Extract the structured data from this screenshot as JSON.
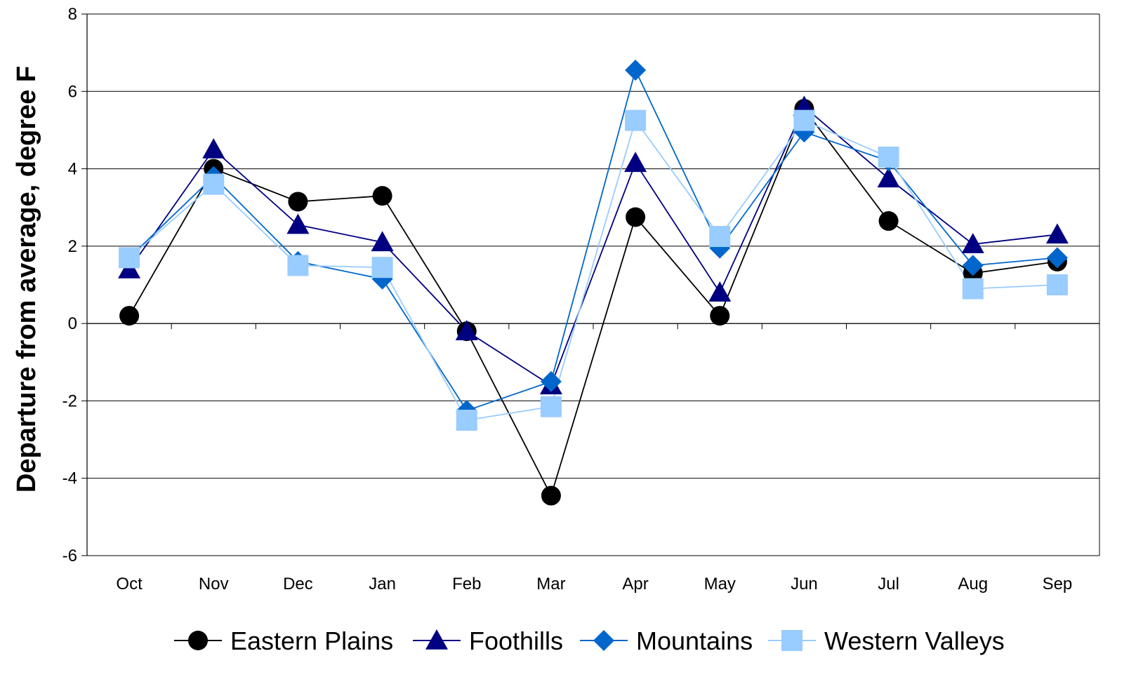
{
  "chart_data": {
    "type": "line",
    "title": "",
    "xlabel": "",
    "ylabel": "Departure from average, degree F",
    "ylim": [
      -6,
      8
    ],
    "yticks": [
      -6,
      -4,
      -2,
      0,
      2,
      4,
      6,
      8
    ],
    "grid": true,
    "legend_position": "bottom",
    "categories": [
      "Oct",
      "Nov",
      "Dec",
      "Jan",
      "Feb",
      "Mar",
      "Apr",
      "May",
      "Jun",
      "Jul",
      "Aug",
      "Sep"
    ],
    "series": [
      {
        "name": "Eastern Plains",
        "marker": "circle",
        "color": "#000000",
        "values": [
          0.2,
          4.0,
          3.15,
          3.3,
          -0.2,
          -4.45,
          2.75,
          0.2,
          5.55,
          2.65,
          1.3,
          1.6
        ]
      },
      {
        "name": "Foothills",
        "marker": "triangle",
        "color": "#000080",
        "values": [
          1.4,
          4.5,
          2.55,
          2.1,
          -0.2,
          -1.6,
          4.15,
          0.8,
          5.6,
          3.75,
          2.05,
          2.3
        ]
      },
      {
        "name": "Mountains",
        "marker": "diamond",
        "color": "#0066CC",
        "values": [
          1.7,
          3.8,
          1.6,
          1.15,
          -2.25,
          -1.5,
          6.55,
          1.95,
          4.95,
          4.2,
          1.5,
          1.7
        ]
      },
      {
        "name": "Western Valleys",
        "marker": "square",
        "color": "#99CCFF",
        "values": [
          1.7,
          3.6,
          1.5,
          1.45,
          -2.5,
          -2.15,
          5.25,
          2.25,
          5.25,
          4.3,
          0.9,
          1.0
        ]
      }
    ]
  }
}
